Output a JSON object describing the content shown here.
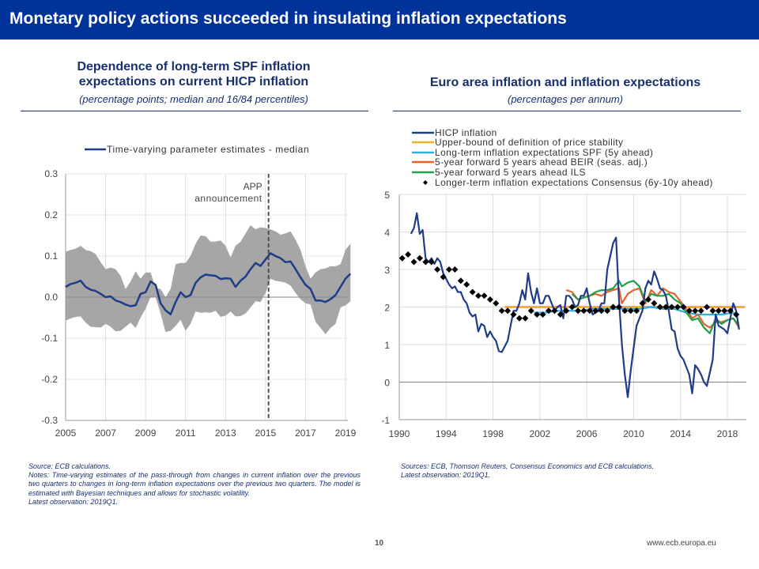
{
  "slide": {
    "title": "Monetary policy actions succeeded in insulating inflation expectations",
    "page_number": "10",
    "url": "www.ecb.europa.eu",
    "colors": {
      "banner": "#003399",
      "text": "#17306e"
    }
  },
  "left_panel": {
    "title_line1": "Dependence of long-term SPF inflation",
    "title_line2": "expectations on current HICP inflation",
    "subtitle": "(percentage points; median and 16/84 percentiles)",
    "source": "Source: ECB calculations.",
    "notes": "Notes: Time-varying estimates of the pass-through from changes in current inflation over the previous two quarters to changes in long-term inflation expectations over the previous two quarters. The model is estimated with Bayesian techniques and allows for stochastic volatility.",
    "latest": "Latest observation: 2019Q1."
  },
  "right_panel": {
    "title": "Euro area inflation and inflation expectations",
    "subtitle": "(percentages per annum)",
    "sources": "Sources: ECB, Thomson Reuters, Consensus Economics and ECB calculations.",
    "latest": "Latest observation: 2019Q1."
  },
  "chart_data": [
    {
      "type": "line",
      "title": "Dependence of long-term SPF inflation expectations on current HICP inflation",
      "xlabel": "",
      "ylabel": "percentage points",
      "xlim": [
        2005,
        2019.25
      ],
      "ylim": [
        -0.3,
        0.3
      ],
      "x_ticks": [
        "2005",
        "2007",
        "2009",
        "2011",
        "2013",
        "2015",
        "2017",
        "2019"
      ],
      "y_ticks": [
        "0.3",
        "0.2",
        "0.1",
        "0.0",
        "-0.1",
        "-0.2",
        "-0.3"
      ],
      "grid": true,
      "legend": [
        "Time-varying parameter estimates - median"
      ],
      "legend_position": "top",
      "annotation": {
        "x": 2015.15,
        "label_line1": "APP",
        "label_line2": "announcement",
        "style": "dashed-vertical"
      },
      "x": [
        2005.0,
        2005.25,
        2005.5,
        2005.75,
        2006.0,
        2006.25,
        2006.5,
        2006.75,
        2007.0,
        2007.25,
        2007.5,
        2007.75,
        2008.0,
        2008.25,
        2008.5,
        2008.75,
        2009.0,
        2009.25,
        2009.5,
        2009.75,
        2010.0,
        2010.25,
        2010.5,
        2010.75,
        2011.0,
        2011.25,
        2011.5,
        2011.75,
        2012.0,
        2012.25,
        2012.5,
        2012.75,
        2013.0,
        2013.25,
        2013.5,
        2013.75,
        2014.0,
        2014.25,
        2014.5,
        2014.75,
        2015.0,
        2015.25,
        2015.5,
        2015.75,
        2016.0,
        2016.25,
        2016.5,
        2016.75,
        2017.0,
        2017.25,
        2017.5,
        2017.75,
        2018.0,
        2018.25,
        2018.5,
        2018.75,
        2019.0,
        2019.25
      ],
      "series": [
        {
          "name": "Time-varying parameter estimates - median",
          "color": "#1f3c88",
          "values": [
            0.025,
            0.032,
            0.035,
            0.04,
            0.025,
            0.018,
            0.015,
            0.008,
            0.0,
            0.002,
            -0.008,
            -0.012,
            -0.018,
            -0.022,
            -0.02,
            0.008,
            0.012,
            0.038,
            0.03,
            -0.015,
            -0.032,
            -0.042,
            -0.012,
            0.012,
            0.0,
            0.005,
            0.035,
            0.048,
            0.055,
            0.053,
            0.052,
            0.044,
            0.046,
            0.045,
            0.025,
            0.04,
            0.05,
            0.068,
            0.083,
            0.076,
            0.092,
            0.107,
            0.1,
            0.095,
            0.085,
            0.087,
            0.068,
            0.048,
            0.03,
            0.02,
            -0.008,
            -0.008,
            -0.012,
            -0.005,
            0.005,
            0.025,
            0.045,
            0.057
          ]
        },
        {
          "name": "84th percentile",
          "color": "#aaaaaa",
          "values": [
            0.11,
            0.115,
            0.118,
            0.125,
            0.115,
            0.112,
            0.105,
            0.085,
            0.068,
            0.072,
            0.068,
            0.052,
            0.02,
            0.038,
            0.063,
            0.045,
            0.06,
            0.06,
            0.022,
            0.02,
            0.0,
            0.02,
            0.08,
            0.083,
            0.083,
            0.1,
            0.13,
            0.15,
            0.148,
            0.135,
            0.135,
            0.138,
            0.125,
            0.097,
            0.125,
            0.135,
            0.155,
            0.175,
            0.165,
            0.17,
            0.168,
            0.165,
            0.16,
            0.152,
            0.155,
            0.16,
            0.14,
            0.115,
            0.075,
            0.045,
            0.06,
            0.068,
            0.07,
            0.075,
            0.075,
            0.08,
            0.115,
            0.13
          ]
        },
        {
          "name": "16th percentile",
          "color": "#aaaaaa",
          "values": [
            -0.057,
            -0.052,
            -0.048,
            -0.047,
            -0.062,
            -0.072,
            -0.073,
            -0.074,
            -0.065,
            -0.072,
            -0.083,
            -0.082,
            -0.072,
            -0.062,
            -0.075,
            -0.05,
            -0.028,
            0.0,
            0.0,
            -0.04,
            -0.085,
            -0.082,
            -0.07,
            -0.055,
            -0.082,
            -0.065,
            -0.035,
            -0.038,
            -0.037,
            -0.038,
            -0.033,
            -0.048,
            -0.045,
            -0.035,
            -0.047,
            -0.046,
            -0.04,
            -0.025,
            -0.01,
            -0.012,
            0.01,
            0.045,
            0.04,
            0.038,
            0.035,
            0.028,
            0.01,
            -0.005,
            -0.015,
            -0.018,
            -0.06,
            -0.075,
            -0.09,
            -0.075,
            -0.065,
            -0.025,
            -0.02,
            -0.01
          ]
        }
      ]
    },
    {
      "type": "line",
      "title": "Euro area inflation and inflation expectations",
      "xlabel": "",
      "ylabel": "percentages per annum",
      "xlim": [
        1990,
        2019.5
      ],
      "ylim": [
        -1,
        5
      ],
      "x_ticks": [
        "1990",
        "1994",
        "1998",
        "2002",
        "2006",
        "2010",
        "2014",
        "2018"
      ],
      "y_ticks": [
        "5",
        "4",
        "3",
        "2",
        "1",
        "0",
        "-1"
      ],
      "grid": true,
      "legend_position": "top-left",
      "series": [
        {
          "name": "HICP inflation",
          "color": "#1f3c88",
          "marker": "line",
          "x": [
            1991.0,
            1991.25,
            1991.5,
            1991.75,
            1992.0,
            1992.25,
            1992.5,
            1992.75,
            1993.0,
            1993.25,
            1993.5,
            1993.75,
            1994.0,
            1994.25,
            1994.5,
            1994.75,
            1995.0,
            1995.25,
            1995.5,
            1995.75,
            1996.0,
            1996.25,
            1996.5,
            1996.75,
            1997.0,
            1997.25,
            1997.5,
            1997.75,
            1998.0,
            1998.25,
            1998.5,
            1998.75,
            1999.0,
            1999.25,
            1999.5,
            1999.75,
            2000.0,
            2000.25,
            2000.5,
            2000.75,
            2001.0,
            2001.25,
            2001.5,
            2001.75,
            2002.0,
            2002.25,
            2002.5,
            2002.75,
            2003.0,
            2003.25,
            2003.5,
            2003.75,
            2004.0,
            2004.25,
            2004.5,
            2004.75,
            2005.0,
            2005.25,
            2005.5,
            2005.75,
            2006.0,
            2006.25,
            2006.5,
            2006.75,
            2007.0,
            2007.25,
            2007.5,
            2007.75,
            2008.0,
            2008.25,
            2008.5,
            2008.75,
            2009.0,
            2009.25,
            2009.5,
            2009.75,
            2010.0,
            2010.25,
            2010.5,
            2010.75,
            2011.0,
            2011.25,
            2011.5,
            2011.75,
            2012.0,
            2012.25,
            2012.5,
            2012.75,
            2013.0,
            2013.25,
            2013.5,
            2013.75,
            2014.0,
            2014.25,
            2014.5,
            2014.75,
            2015.0,
            2015.25,
            2015.5,
            2015.75,
            2016.0,
            2016.25,
            2016.5,
            2016.75,
            2017.0,
            2017.25,
            2017.5,
            2017.75,
            2018.0,
            2018.25,
            2018.5,
            2018.75,
            2019.0
          ],
          "values": [
            3.95,
            4.1,
            4.5,
            3.95,
            4.05,
            3.3,
            3.2,
            3.3,
            3.15,
            3.3,
            3.2,
            2.9,
            2.75,
            2.6,
            2.5,
            2.55,
            2.4,
            2.4,
            2.2,
            2.1,
            1.85,
            1.75,
            1.8,
            1.35,
            1.55,
            1.5,
            1.2,
            1.35,
            1.2,
            1.1,
            0.82,
            0.8,
            0.95,
            1.1,
            1.5,
            1.9,
            1.9,
            2.1,
            2.45,
            2.2,
            2.9,
            2.4,
            2.1,
            2.5,
            2.1,
            2.1,
            2.3,
            2.3,
            2.1,
            1.9,
            2.0,
            2.05,
            1.7,
            2.3,
            2.3,
            2.2,
            2.0,
            2.05,
            2.3,
            2.3,
            2.5,
            2.1,
            1.8,
            1.85,
            1.9,
            2.1,
            2.1,
            3.0,
            3.35,
            3.7,
            3.85,
            2.2,
            1.0,
            0.2,
            -0.4,
            0.3,
            0.9,
            1.5,
            1.7,
            1.9,
            2.5,
            2.7,
            2.6,
            2.95,
            2.75,
            2.5,
            2.45,
            2.3,
            1.9,
            1.4,
            1.35,
            0.9,
            0.7,
            0.6,
            0.4,
            0.2,
            -0.3,
            0.45,
            0.35,
            0.2,
            0.0,
            -0.1,
            0.25,
            0.6,
            1.8,
            1.5,
            1.45,
            1.4,
            1.3,
            1.7,
            2.1,
            1.9,
            1.4
          ]
        },
        {
          "name": "Upper-bound of definition of price stability",
          "color": "#f0b323",
          "marker": "line",
          "x": [
            1999.0,
            2019.5
          ],
          "values": [
            2.0,
            2.0
          ]
        },
        {
          "name": "Long-term inflation expectations SPF (5y ahead)",
          "color": "#2fb0d8",
          "marker": "line",
          "x": [
            2001.5,
            2002.5,
            2003.5,
            2004.5,
            2005.5,
            2006.5,
            2007.5,
            2008.5,
            2009.5,
            2010.5,
            2011.5,
            2012.5,
            2013.5,
            2014.5,
            2015.5,
            2016.5,
            2017.5,
            2018.5,
            2019.0
          ],
          "values": [
            1.85,
            1.85,
            1.9,
            1.9,
            1.9,
            1.95,
            1.95,
            1.95,
            1.95,
            1.95,
            2.0,
            1.95,
            1.95,
            1.85,
            1.8,
            1.8,
            1.8,
            1.85,
            1.8
          ]
        },
        {
          "name": "5-year forward 5 years ahead BEIR (seas. adj.)",
          "color": "#e8622c",
          "marker": "line",
          "x": [
            2004.25,
            2004.75,
            2005.25,
            2005.75,
            2006.25,
            2006.75,
            2007.25,
            2007.75,
            2008.25,
            2008.75,
            2009.0,
            2009.5,
            2010.0,
            2010.5,
            2011.0,
            2011.5,
            2012.0,
            2012.5,
            2013.0,
            2013.5,
            2014.0,
            2014.5,
            2015.0,
            2015.5,
            2016.0,
            2016.5,
            2017.0,
            2017.5,
            2018.0,
            2018.5,
            2019.0
          ],
          "values": [
            2.45,
            2.4,
            2.2,
            2.25,
            2.3,
            2.35,
            2.3,
            2.4,
            2.45,
            2.5,
            2.1,
            2.35,
            2.45,
            2.5,
            2.1,
            2.45,
            2.3,
            2.5,
            2.4,
            2.35,
            2.15,
            1.95,
            1.7,
            1.8,
            1.55,
            1.45,
            1.6,
            1.6,
            1.65,
            1.7,
            1.45
          ]
        },
        {
          "name": "5-year forward 5 years ahead ILS",
          "color": "#22a04a",
          "marker": "line",
          "x": [
            2004.75,
            2005.25,
            2005.75,
            2006.25,
            2006.75,
            2007.25,
            2007.75,
            2008.25,
            2008.75,
            2009.0,
            2009.5,
            2010.0,
            2010.5,
            2011.0,
            2011.5,
            2012.0,
            2012.5,
            2013.0,
            2013.5,
            2014.0,
            2014.5,
            2015.0,
            2015.5,
            2016.0,
            2016.5,
            2017.0,
            2017.5,
            2018.0,
            2018.5,
            2019.0
          ],
          "values": [
            2.35,
            2.2,
            2.25,
            2.3,
            2.4,
            2.45,
            2.45,
            2.5,
            2.7,
            2.55,
            2.65,
            2.7,
            2.55,
            2.15,
            2.35,
            2.3,
            2.3,
            2.35,
            2.2,
            2.1,
            1.85,
            1.65,
            1.7,
            1.45,
            1.3,
            1.7,
            1.55,
            1.65,
            1.7,
            1.5
          ]
        },
        {
          "name": "Longer-term inflation expectations Consensus (6y-10y ahead)",
          "color": "#000000",
          "marker": "diamond",
          "x": [
            1990.25,
            1990.75,
            1991.25,
            1991.75,
            1992.25,
            1992.75,
            1993.25,
            1993.75,
            1994.25,
            1994.75,
            1995.25,
            1995.75,
            1996.25,
            1996.75,
            1997.25,
            1997.75,
            1998.25,
            1998.75,
            1999.25,
            1999.75,
            2000.25,
            2000.75,
            2001.25,
            2001.75,
            2002.25,
            2002.75,
            2003.25,
            2003.75,
            2004.25,
            2004.75,
            2005.25,
            2005.75,
            2006.25,
            2006.75,
            2007.25,
            2007.75,
            2008.25,
            2008.75,
            2009.25,
            2009.75,
            2010.25,
            2010.75,
            2011.25,
            2011.75,
            2012.25,
            2012.75,
            2013.25,
            2013.75,
            2014.25,
            2014.75,
            2015.25,
            2015.75,
            2016.25,
            2016.75,
            2017.25,
            2017.75,
            2018.25,
            2018.75
          ],
          "values": [
            3.3,
            3.4,
            3.2,
            3.3,
            3.2,
            3.2,
            3.0,
            2.8,
            3.0,
            3.0,
            2.7,
            2.6,
            2.4,
            2.3,
            2.3,
            2.2,
            2.1,
            1.9,
            1.9,
            1.8,
            1.7,
            1.7,
            1.9,
            1.8,
            1.8,
            1.9,
            1.9,
            1.8,
            1.9,
            2.0,
            1.9,
            1.9,
            1.9,
            1.9,
            1.9,
            1.9,
            2.0,
            2.0,
            1.9,
            1.9,
            1.9,
            2.1,
            2.2,
            2.1,
            2.0,
            2.0,
            2.0,
            2.0,
            2.0,
            1.9,
            1.9,
            1.9,
            2.0,
            1.9,
            1.9,
            1.9,
            1.9,
            1.8
          ]
        }
      ]
    }
  ]
}
